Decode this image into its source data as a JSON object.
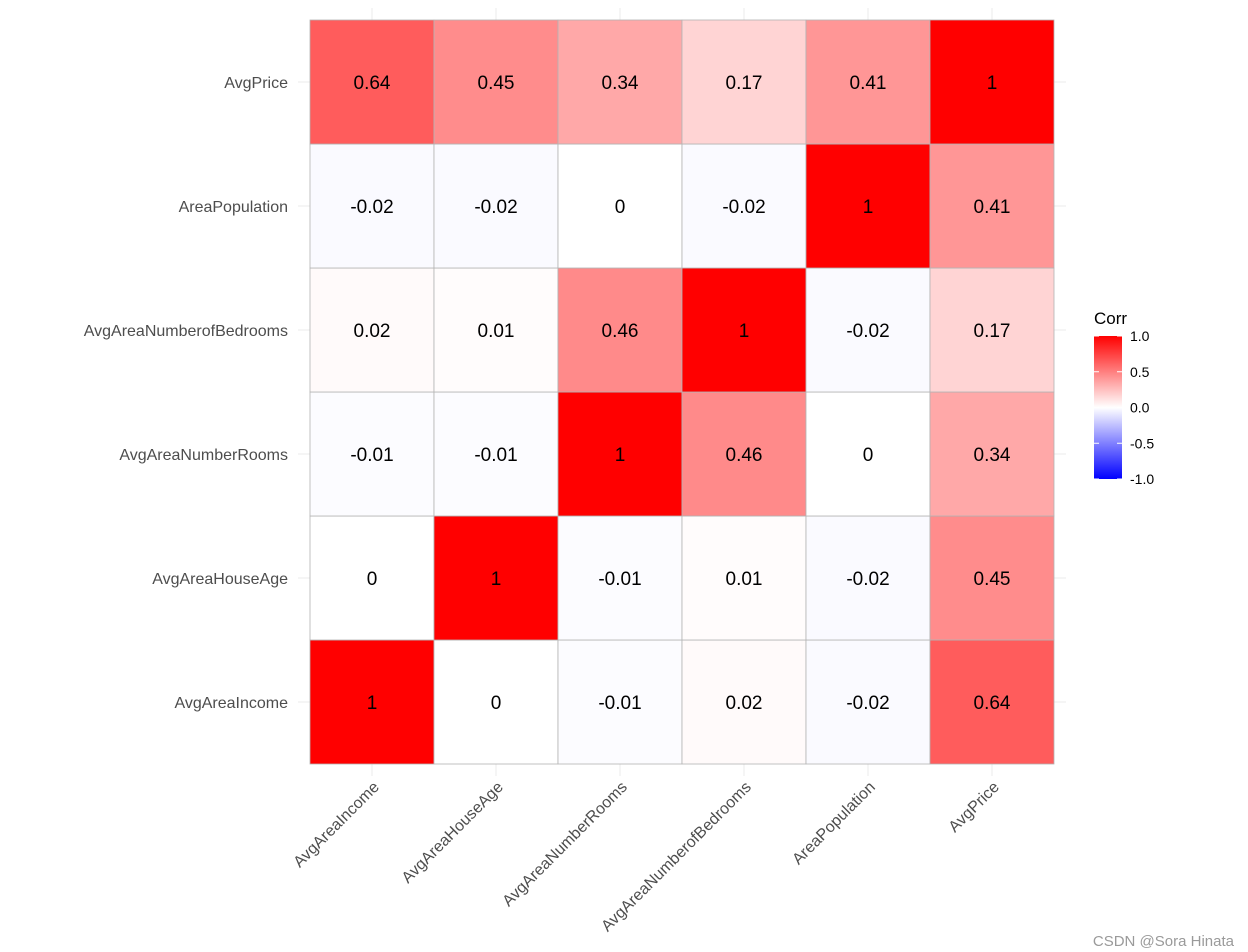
{
  "chart_data": {
    "type": "heatmap",
    "variables": [
      "AvgAreaIncome",
      "AvgAreaHouseAge",
      "AvgAreaNumberRooms",
      "AvgAreaNumberofBedrooms",
      "AreaPopulation",
      "AvgPrice"
    ],
    "x_categories": [
      "AvgAreaIncome",
      "AvgAreaHouseAge",
      "AvgAreaNumberRooms",
      "AvgAreaNumberofBedrooms",
      "AreaPopulation",
      "AvgPrice"
    ],
    "y_categories_bottom_to_top": [
      "AvgAreaIncome",
      "AvgAreaHouseAge",
      "AvgAreaNumberRooms",
      "AvgAreaNumberofBedrooms",
      "AreaPopulation",
      "AvgPrice"
    ],
    "matrix": [
      [
        1,
        0,
        -0.01,
        0.02,
        -0.02,
        0.64
      ],
      [
        0,
        1,
        -0.01,
        0.01,
        -0.02,
        0.45
      ],
      [
        -0.01,
        -0.01,
        1,
        0.46,
        0,
        0.34
      ],
      [
        0.02,
        0.01,
        0.46,
        1,
        -0.02,
        0.17
      ],
      [
        -0.02,
        -0.02,
        0,
        -0.02,
        1,
        0.41
      ],
      [
        0.64,
        0.45,
        0.34,
        0.17,
        0.41,
        1
      ]
    ],
    "legend": {
      "title": "Corr",
      "placement": "right",
      "range": [
        -1,
        1
      ],
      "ticks": [
        1.0,
        0.5,
        0.0,
        -0.5,
        -1.0
      ],
      "tick_labels": [
        "1.0",
        "0.5",
        "0.0",
        "-0.5",
        "-1.0"
      ]
    },
    "colors": {
      "low": "#0000ff",
      "mid": "#ffffff",
      "high": "#ff0000",
      "cell_border": "#b3b3b3"
    },
    "grid": true
  },
  "watermark": "CSDN @Sora Hinata"
}
